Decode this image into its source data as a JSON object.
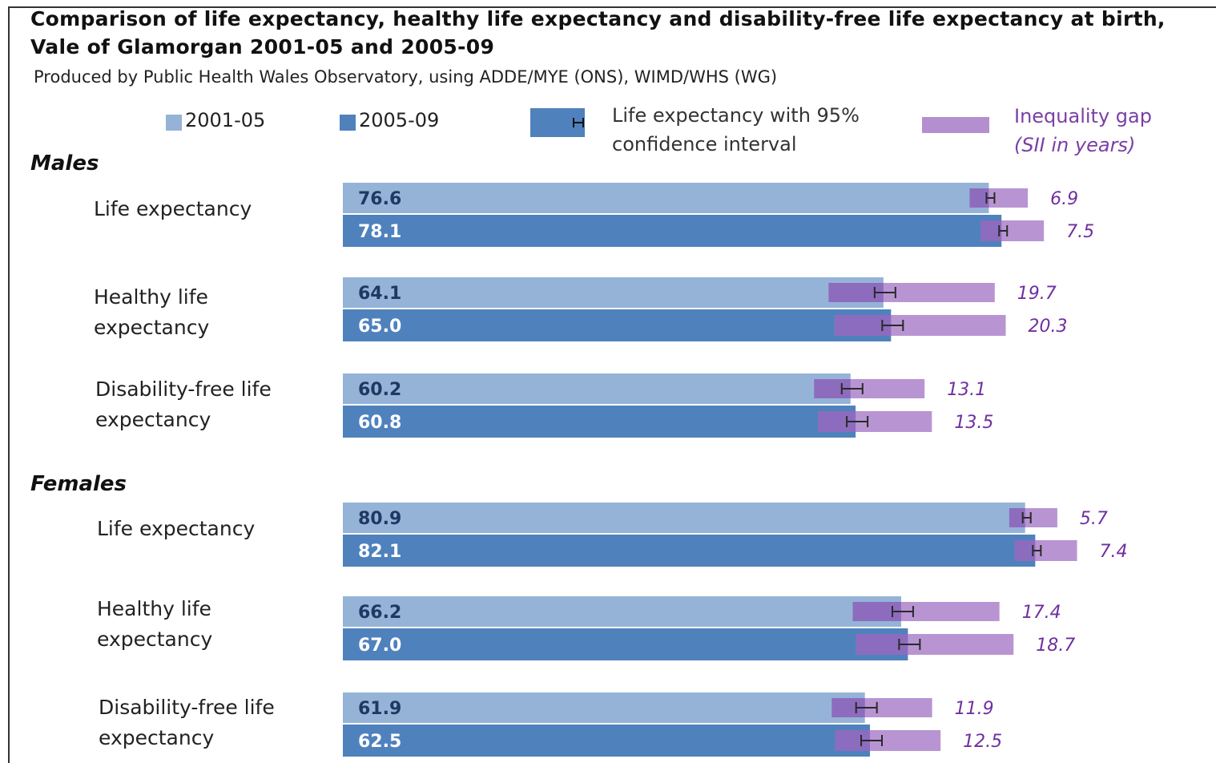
{
  "header": {
    "title": "Comparison of life expectancy, healthy life expectancy and disability-free life expectancy at birth, Vale of Glamorgan 2001-05 and 2005-09",
    "subtitle": "Produced by Public Health Wales Observatory, using ADDE/MYE (ONS), WIMD/WHS (WG)"
  },
  "legend": {
    "period1": "2001-05",
    "period2": "2005-09",
    "ci": "Life expectancy with 95% confidence interval",
    "gap": "Inequality gap",
    "gap_sub": "(SII in years)"
  },
  "sections": {
    "males": "Males",
    "females": "Females"
  },
  "labels": {
    "le": "Life expectancy",
    "hle": "Healthy life expectancy",
    "dfle": "Disability-free life expectancy"
  },
  "colors": {
    "period1": "#95b3d7",
    "period2": "#4f81bd",
    "gap": "#b48fd0",
    "gap_overlap": "#8060b8",
    "gap_text": "#7030a0",
    "value_text_light": "#1f3864",
    "value_text_dark": "#ffffff"
  },
  "chart_data": {
    "type": "bar",
    "orientation": "horizontal",
    "categories": [
      "Males - Life expectancy",
      "Males - Healthy life expectancy",
      "Males - Disability-free life expectancy",
      "Females - Life expectancy",
      "Females - Healthy life expectancy",
      "Females - Disability-free life expectancy"
    ],
    "series": [
      {
        "name": "2001-05",
        "values": [
          76.6,
          64.1,
          60.2,
          80.9,
          66.2,
          61.9
        ],
        "inequality_gap": [
          6.9,
          19.7,
          13.1,
          5.7,
          17.4,
          11.9
        ]
      },
      {
        "name": "2005-09",
        "values": [
          78.1,
          65.0,
          60.8,
          82.1,
          67.0,
          62.5
        ],
        "inequality_gap": [
          7.5,
          20.3,
          13.5,
          7.4,
          18.7,
          12.5
        ]
      }
    ],
    "value_labels": {
      "2001-05": [
        "76.6",
        "64.1",
        "60.2",
        "80.9",
        "66.2",
        "61.9"
      ],
      "2005-09": [
        "78.1",
        "65.0",
        "60.8",
        "82.1",
        "67.0",
        "62.5"
      ]
    },
    "gap_labels": {
      "2001-05": [
        "6.9",
        "19.7",
        "13.1",
        "5.7",
        "17.4",
        "11.9"
      ],
      "2005-09": [
        "7.5",
        "20.3",
        "13.5",
        "7.4",
        "18.7",
        "12.5"
      ]
    },
    "xlim": [
      0,
      100
    ],
    "grid": false
  }
}
